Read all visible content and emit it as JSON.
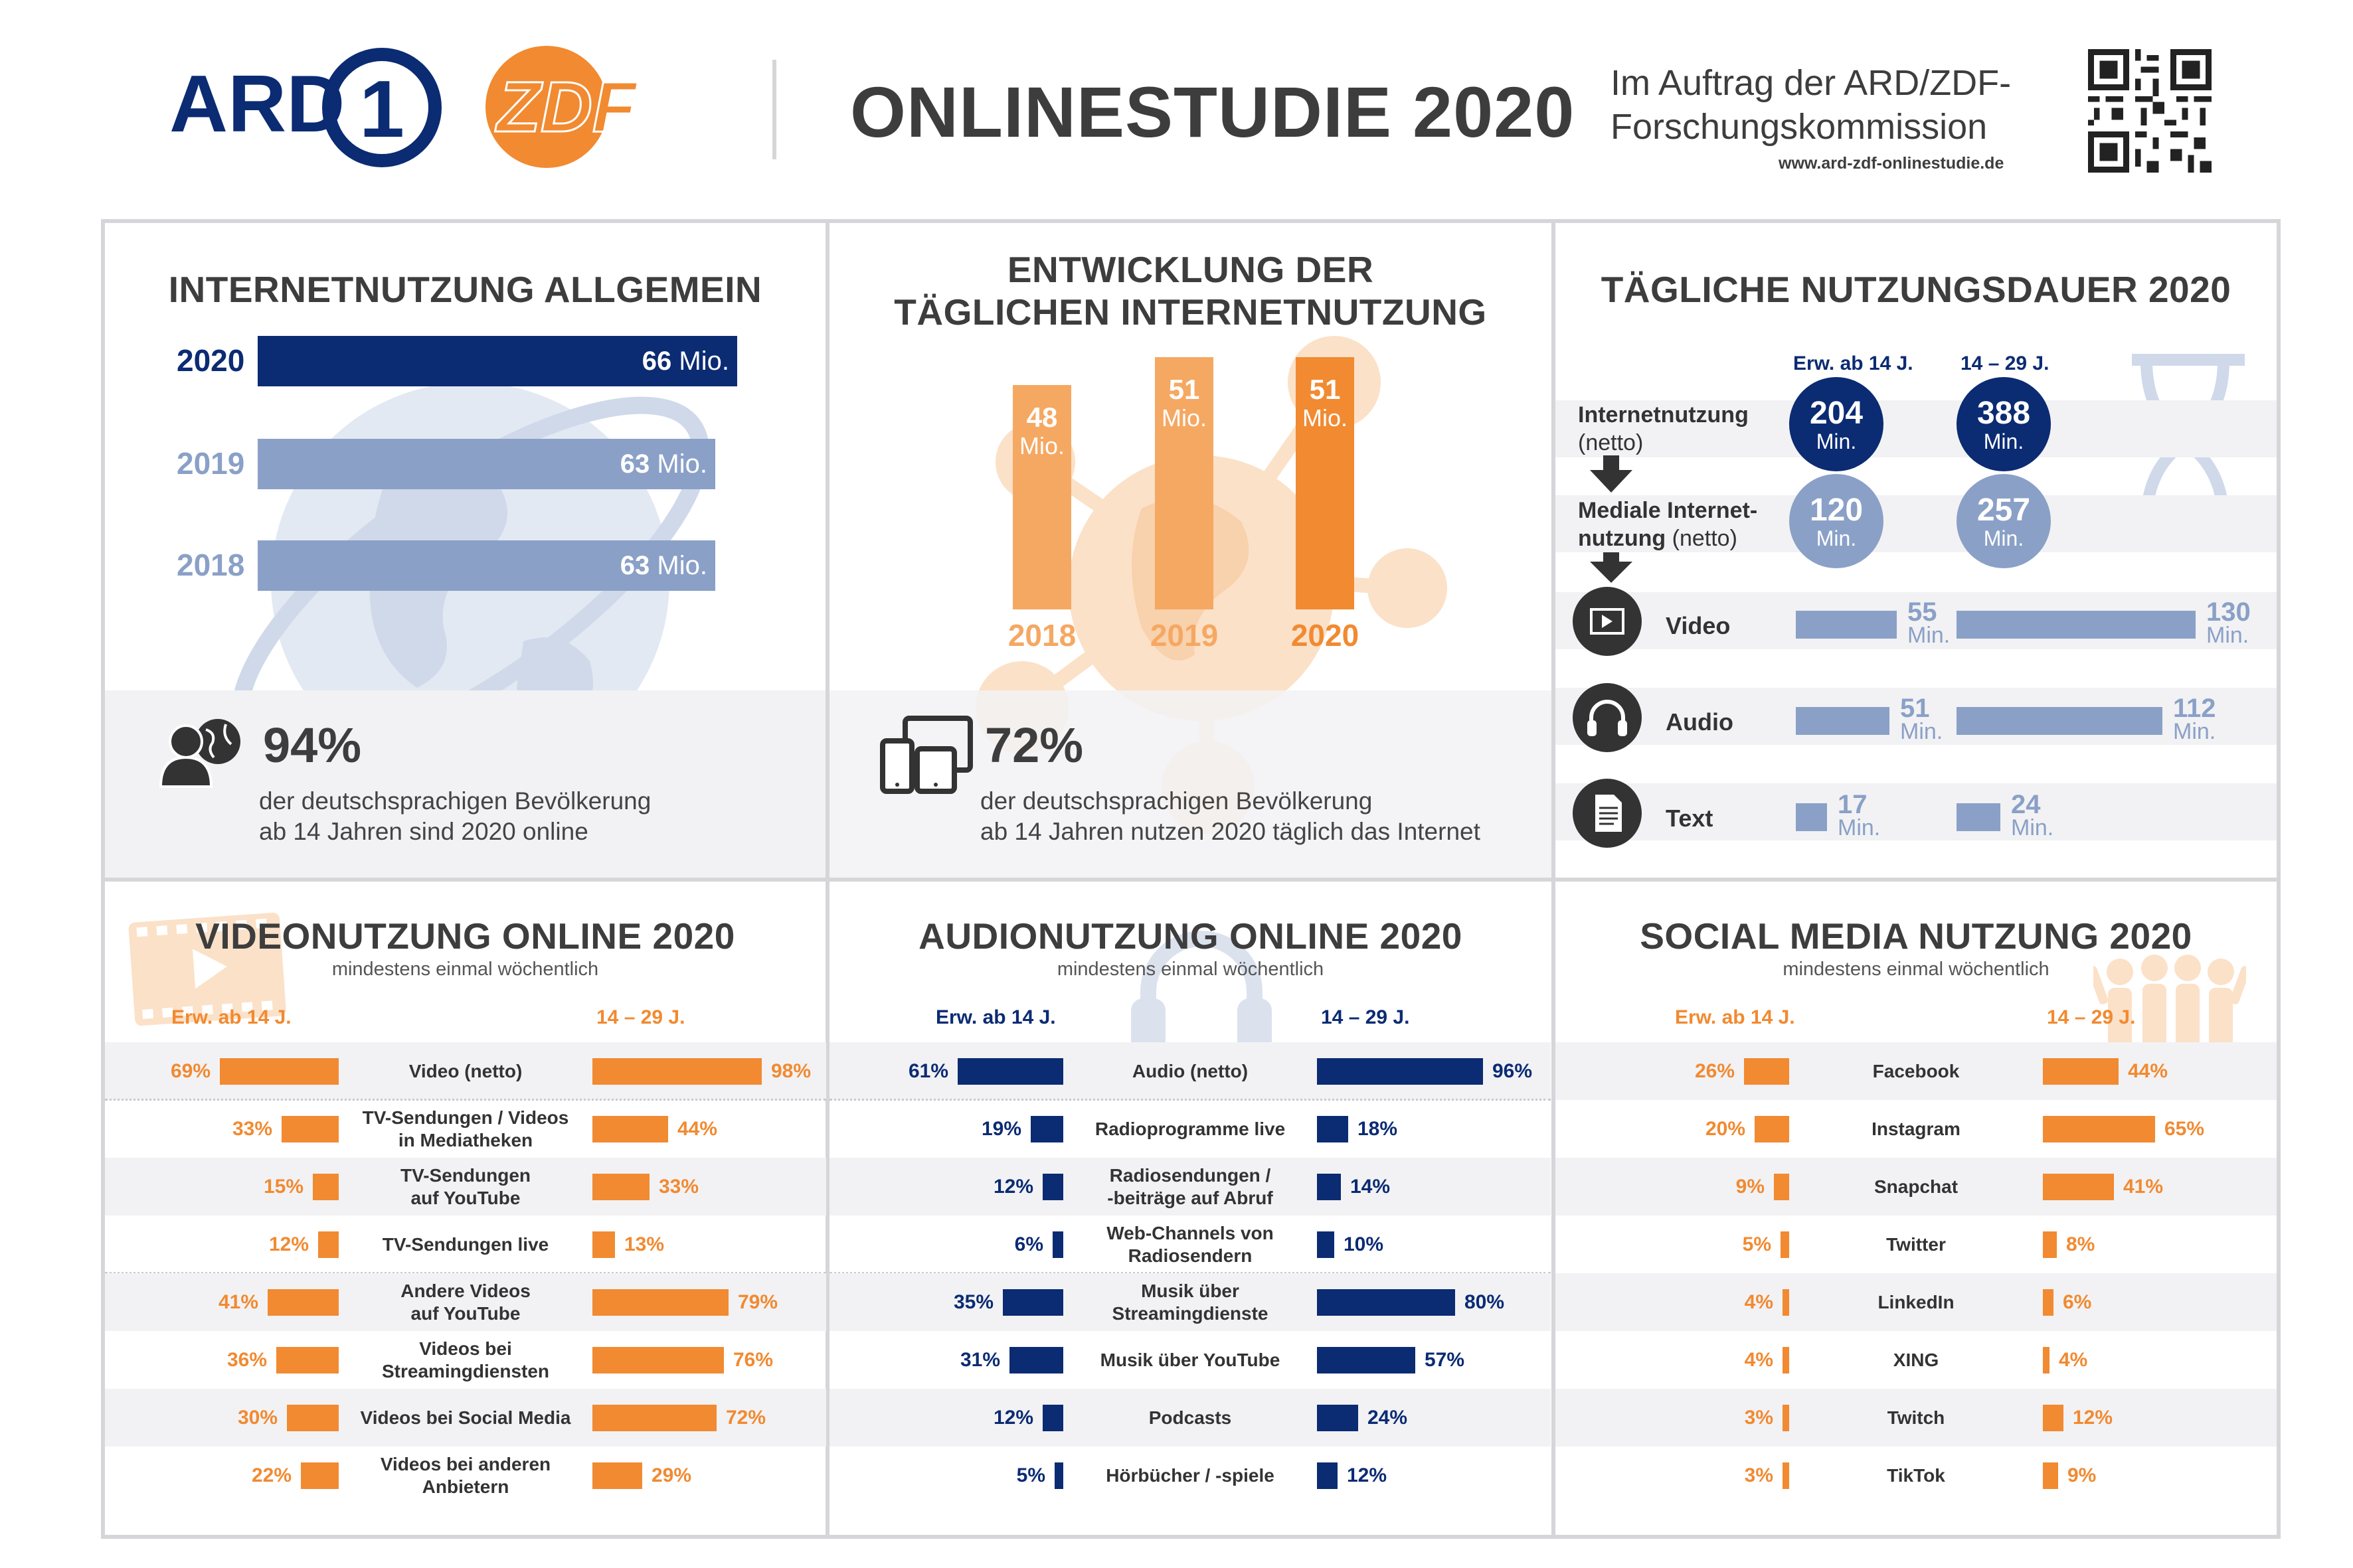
{
  "header": {
    "ard_logo": "ARD",
    "ard_logo_digit": "1",
    "zdf_logo": "ZDF",
    "title": "ONLINESTUDIE 2020",
    "commission_line1": "Im Auftrag der ARD/ZDF-",
    "commission_line2": "Forschungskommission",
    "website": "www.ard-zdf-onlinestudie.de",
    "qr_icon": "qr-code-icon"
  },
  "colors": {
    "navy": "#0b2b73",
    "steel": "#8aa0c7",
    "orange": "#f18a31",
    "light_orange": "#f5a862",
    "dark_gray": "#3d3d3d",
    "band_gray": "#f2f2f4"
  },
  "panel1": {
    "title": "INTERNETNUTZUNG ALLGEMEIN",
    "bars": [
      {
        "year": "2020",
        "value": "66",
        "unit": "Mio."
      },
      {
        "year": "2019",
        "value": "63",
        "unit": "Mio."
      },
      {
        "year": "2018",
        "value": "63",
        "unit": "Mio."
      }
    ],
    "stat_icon": "person-globe-icon",
    "stat_pct": "94%",
    "stat_line1": "der deutschsprachigen Bevölkerung",
    "stat_line2": "ab 14 Jahren sind 2020 online"
  },
  "panel2": {
    "title_line1": "ENTWICKLUNG DER",
    "title_line2": "TÄGLICHEN INTERNETNUTZUNG",
    "bars": [
      {
        "year": "2018",
        "value": "48",
        "unit": "Mio."
      },
      {
        "year": "2019",
        "value": "51",
        "unit": "Mio."
      },
      {
        "year": "2020",
        "value": "51",
        "unit": "Mio."
      }
    ],
    "stat_icon": "devices-icon",
    "stat_pct": "72%",
    "stat_line1": "der deutschsprachigen Bevölkerung",
    "stat_line2": "ab 14 Jahren nutzen 2020 täglich das Internet"
  },
  "panel3": {
    "title": "TÄGLICHE NUTZUNGSDAUER 2020",
    "col1": "Erw. ab 14 J.",
    "col2": "14 – 29 J.",
    "row1_label": "Internetnutzung",
    "row1_sub": "(netto)",
    "row1_vals": [
      "204",
      "388"
    ],
    "row2_label_a": "Mediale Internet-",
    "row2_label_b": "nutzung",
    "row2_sub": "(netto)",
    "row2_vals": [
      "120",
      "257"
    ],
    "unit": "Min.",
    "media_rows": [
      {
        "label": "Video",
        "icon": "video-icon",
        "adult": "55",
        "young": "130"
      },
      {
        "label": "Audio",
        "icon": "headphones-icon",
        "adult": "51",
        "young": "112"
      },
      {
        "label": "Text",
        "icon": "document-icon",
        "adult": "17",
        "young": "24"
      }
    ]
  },
  "panel4": {
    "title": "VIDEONUTZUNG ONLINE 2020",
    "subtitle": "mindestens einmal wöchentlich",
    "col1": "Erw. ab 14 J.",
    "col2": "14 – 29 J.",
    "rows": [
      {
        "l1": "Video (netto)",
        "l2": "",
        "a": "69%",
        "y": "98%"
      },
      {
        "l1": "TV-Sendungen / Videos",
        "l2": "in Mediatheken",
        "a": "33%",
        "y": "44%"
      },
      {
        "l1": "TV-Sendungen",
        "l2": "auf YouTube",
        "a": "15%",
        "y": "33%"
      },
      {
        "l1": "TV-Sendungen live",
        "l2": "",
        "a": "12%",
        "y": "13%"
      },
      {
        "l1": "Andere Videos",
        "l2": "auf YouTube",
        "a": "41%",
        "y": "79%"
      },
      {
        "l1": "Videos bei",
        "l2": "Streamingdiensten",
        "a": "36%",
        "y": "76%"
      },
      {
        "l1": "Videos bei Social Media",
        "l2": "",
        "a": "30%",
        "y": "72%"
      },
      {
        "l1": "Videos bei anderen",
        "l2": "Anbietern",
        "a": "22%",
        "y": "29%"
      }
    ]
  },
  "panel5": {
    "title": "AUDIONUTZUNG ONLINE 2020",
    "subtitle": "mindestens einmal wöchentlich",
    "col1": "Erw. ab 14 J.",
    "col2": "14 – 29 J.",
    "rows": [
      {
        "l1": "Audio (netto)",
        "l2": "",
        "a": "61%",
        "y": "96%"
      },
      {
        "l1": "Radioprogramme live",
        "l2": "",
        "a": "19%",
        "y": "18%"
      },
      {
        "l1": "Radiosendungen /",
        "l2": "-beiträge auf Abruf",
        "a": "12%",
        "y": "14%"
      },
      {
        "l1": "Web-Channels von",
        "l2": "Radiosendern",
        "a": "6%",
        "y": "10%"
      },
      {
        "l1": "Musik über",
        "l2": "Streamingdienste",
        "a": "35%",
        "y": "80%"
      },
      {
        "l1": "Musik über YouTube",
        "l2": "",
        "a": "31%",
        "y": "57%"
      },
      {
        "l1": "Podcasts",
        "l2": "",
        "a": "12%",
        "y": "24%"
      },
      {
        "l1": "Hörbücher / -spiele",
        "l2": "",
        "a": "5%",
        "y": "12%"
      }
    ]
  },
  "panel6": {
    "title": "SOCIAL MEDIA NUTZUNG 2020",
    "subtitle": "mindestens einmal wöchentlich",
    "col1": "Erw. ab 14 J.",
    "col2": "14 – 29 J.",
    "rows": [
      {
        "l1": "Facebook",
        "l2": "",
        "a": "26%",
        "y": "44%"
      },
      {
        "l1": "Instagram",
        "l2": "",
        "a": "20%",
        "y": "65%"
      },
      {
        "l1": "Snapchat",
        "l2": "",
        "a": "9%",
        "y": "41%"
      },
      {
        "l1": "Twitter",
        "l2": "",
        "a": "5%",
        "y": "8%"
      },
      {
        "l1": "LinkedIn",
        "l2": "",
        "a": "4%",
        "y": "6%"
      },
      {
        "l1": "XING",
        "l2": "",
        "a": "4%",
        "y": "4%"
      },
      {
        "l1": "Twitch",
        "l2": "",
        "a": "3%",
        "y": "12%"
      },
      {
        "l1": "TikTok",
        "l2": "",
        "a": "3%",
        "y": "9%"
      }
    ]
  },
  "chart_data": [
    {
      "type": "bar",
      "title": "INTERNETNUTZUNG ALLGEMEIN",
      "categories": [
        "2020",
        "2019",
        "2018"
      ],
      "values": [
        66,
        63,
        63
      ],
      "unit": "Mio."
    },
    {
      "type": "bar",
      "title": "ENTWICKLUNG DER TÄGLICHEN INTERNETNUTZUNG",
      "categories": [
        "2018",
        "2019",
        "2020"
      ],
      "values": [
        48,
        51,
        51
      ],
      "unit": "Mio."
    },
    {
      "type": "bar",
      "title": "TÄGLICHE NUTZUNGSDAUER 2020",
      "categories": [
        "Internetnutzung (netto)",
        "Mediale Internetnutzung (netto)",
        "Video",
        "Audio",
        "Text"
      ],
      "series": [
        {
          "name": "Erw. ab 14 J.",
          "values": [
            204,
            120,
            55,
            51,
            17
          ]
        },
        {
          "name": "14 – 29 J.",
          "values": [
            388,
            257,
            130,
            112,
            24
          ]
        }
      ],
      "unit": "Min."
    },
    {
      "type": "bar",
      "title": "VIDEONUTZUNG ONLINE 2020",
      "categories": [
        "Video (netto)",
        "TV-Sendungen / Videos in Mediatheken",
        "TV-Sendungen auf YouTube",
        "TV-Sendungen live",
        "Andere Videos auf YouTube",
        "Videos bei Streamingdiensten",
        "Videos bei Social Media",
        "Videos bei anderen Anbietern"
      ],
      "series": [
        {
          "name": "Erw. ab 14 J.",
          "values": [
            69,
            33,
            15,
            12,
            41,
            36,
            30,
            22
          ]
        },
        {
          "name": "14 – 29 J.",
          "values": [
            98,
            44,
            33,
            13,
            79,
            76,
            72,
            29
          ]
        }
      ],
      "unit": "%"
    },
    {
      "type": "bar",
      "title": "AUDIONUTZUNG ONLINE 2020",
      "categories": [
        "Audio (netto)",
        "Radioprogramme live",
        "Radiosendungen / -beiträge auf Abruf",
        "Web-Channels von Radiosendern",
        "Musik über Streamingdienste",
        "Musik über YouTube",
        "Podcasts",
        "Hörbücher / -spiele"
      ],
      "series": [
        {
          "name": "Erw. ab 14 J.",
          "values": [
            61,
            19,
            12,
            6,
            35,
            31,
            12,
            5
          ]
        },
        {
          "name": "14 – 29 J.",
          "values": [
            96,
            18,
            14,
            10,
            80,
            57,
            24,
            12
          ]
        }
      ],
      "unit": "%"
    },
    {
      "type": "bar",
      "title": "SOCIAL MEDIA NUTZUNG 2020",
      "categories": [
        "Facebook",
        "Instagram",
        "Snapchat",
        "Twitter",
        "LinkedIn",
        "XING",
        "Twitch",
        "TikTok"
      ],
      "series": [
        {
          "name": "Erw. ab 14 J.",
          "values": [
            26,
            20,
            9,
            5,
            4,
            4,
            3,
            3
          ]
        },
        {
          "name": "14 – 29 J.",
          "values": [
            44,
            65,
            41,
            8,
            6,
            4,
            12,
            9
          ]
        }
      ],
      "unit": "%"
    }
  ]
}
